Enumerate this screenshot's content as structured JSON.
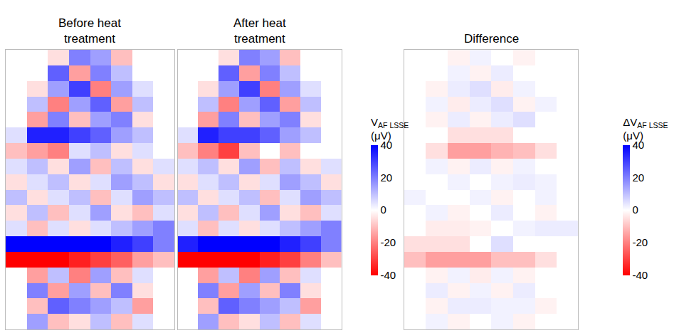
{
  "chart_data": [
    {
      "type": "heatmap",
      "title": "Before heat treatment",
      "tick_labels": false,
      "zlim": [
        -40,
        40
      ],
      "z": [
        [
          0,
          0,
          -5,
          20,
          15,
          -10,
          0,
          0
        ],
        [
          0,
          0,
          25,
          -15,
          20,
          10,
          0,
          0
        ],
        [
          0,
          -5,
          15,
          30,
          -20,
          15,
          5,
          0
        ],
        [
          0,
          10,
          -20,
          15,
          25,
          -15,
          10,
          0
        ],
        [
          0,
          -15,
          20,
          -10,
          15,
          20,
          -5,
          0
        ],
        [
          5,
          35,
          35,
          30,
          25,
          15,
          10,
          0
        ],
        [
          -10,
          -15,
          -20,
          5,
          10,
          -5,
          5,
          0
        ],
        [
          5,
          10,
          -5,
          15,
          -10,
          10,
          -5,
          5
        ],
        [
          -5,
          5,
          10,
          -5,
          5,
          15,
          10,
          -5
        ],
        [
          10,
          -5,
          5,
          10,
          -10,
          5,
          15,
          10
        ],
        [
          -5,
          10,
          -10,
          5,
          15,
          -5,
          -10,
          5
        ],
        [
          5,
          -10,
          5,
          -5,
          5,
          10,
          15,
          20
        ],
        [
          40,
          40,
          40,
          40,
          40,
          35,
          30,
          20
        ],
        [
          -40,
          -40,
          -40,
          -35,
          -30,
          -25,
          -15,
          -10
        ],
        [
          0,
          -15,
          10,
          -20,
          15,
          -10,
          5,
          0
        ],
        [
          0,
          20,
          -15,
          15,
          -10,
          20,
          -5,
          0
        ],
        [
          0,
          -10,
          25,
          20,
          15,
          10,
          -15,
          0
        ],
        [
          0,
          15,
          -10,
          -5,
          10,
          -10,
          5,
          0
        ]
      ]
    },
    {
      "type": "heatmap",
      "title": "After heat treatment",
      "tick_labels": false,
      "zlim": [
        -40,
        40
      ],
      "colorbar": {
        "symbol": "V",
        "subscript": "AF LSSE",
        "unit": "(μV)",
        "range": [
          -40,
          40
        ],
        "ticks": [
          -40,
          -20,
          0,
          20,
          40
        ]
      },
      "z": [
        [
          0,
          0,
          -5,
          20,
          15,
          -10,
          0,
          0
        ],
        [
          0,
          0,
          25,
          -15,
          20,
          10,
          0,
          0
        ],
        [
          0,
          -5,
          15,
          30,
          -20,
          15,
          5,
          0
        ],
        [
          0,
          10,
          -20,
          15,
          25,
          -15,
          10,
          0
        ],
        [
          0,
          -15,
          20,
          -10,
          15,
          20,
          -5,
          0
        ],
        [
          5,
          35,
          30,
          30,
          25,
          15,
          10,
          0
        ],
        [
          -10,
          -20,
          -30,
          -10,
          0,
          -10,
          0,
          0
        ],
        [
          5,
          10,
          -5,
          15,
          -10,
          10,
          -5,
          5
        ],
        [
          -5,
          5,
          10,
          -5,
          5,
          15,
          10,
          -5
        ],
        [
          10,
          -5,
          5,
          10,
          -10,
          5,
          15,
          10
        ],
        [
          -5,
          10,
          -10,
          5,
          15,
          -5,
          -10,
          5
        ],
        [
          5,
          -10,
          5,
          -5,
          5,
          10,
          15,
          20
        ],
        [
          35,
          40,
          40,
          40,
          40,
          35,
          30,
          20
        ],
        [
          -40,
          -40,
          -40,
          -40,
          -35,
          -30,
          -20,
          -10
        ],
        [
          0,
          -15,
          10,
          -20,
          15,
          -10,
          5,
          0
        ],
        [
          0,
          20,
          -15,
          15,
          -10,
          20,
          -5,
          0
        ],
        [
          0,
          -10,
          25,
          20,
          15,
          10,
          -15,
          0
        ],
        [
          0,
          15,
          -10,
          -5,
          10,
          -10,
          5,
          0
        ]
      ]
    },
    {
      "type": "heatmap",
      "title": "Difference",
      "tick_labels": false,
      "zlim": [
        -40,
        40
      ],
      "colorbar": {
        "symbol": "ΔV",
        "subscript": "AF LSSE",
        "unit": "(μV)",
        "range": [
          -40,
          40
        ],
        "ticks": [
          -40,
          -20,
          0,
          20,
          40
        ]
      },
      "z": [
        [
          0,
          0,
          -2,
          2,
          0,
          -2,
          0,
          0
        ],
        [
          0,
          0,
          2,
          -2,
          3,
          0,
          0,
          0
        ],
        [
          0,
          -2,
          3,
          5,
          -3,
          2,
          0,
          0
        ],
        [
          0,
          2,
          -3,
          3,
          5,
          -2,
          2,
          0
        ],
        [
          0,
          -2,
          3,
          -2,
          3,
          5,
          0,
          0
        ],
        [
          0,
          0,
          -5,
          -5,
          -5,
          0,
          0,
          0
        ],
        [
          0,
          -5,
          -15,
          -15,
          -12,
          -10,
          -5,
          0
        ],
        [
          0,
          2,
          -2,
          3,
          -2,
          2,
          0,
          0
        ],
        [
          0,
          0,
          2,
          0,
          2,
          3,
          2,
          0
        ],
        [
          2,
          0,
          0,
          2,
          -2,
          0,
          2,
          0
        ],
        [
          0,
          2,
          -2,
          0,
          3,
          0,
          -2,
          0
        ],
        [
          0,
          -3,
          -3,
          -2,
          0,
          2,
          3,
          3
        ],
        [
          -5,
          -5,
          -5,
          0,
          5,
          0,
          0,
          0
        ],
        [
          -10,
          -15,
          -15,
          -15,
          -10,
          -10,
          -5,
          0
        ],
        [
          0,
          -2,
          2,
          -3,
          2,
          -2,
          0,
          0
        ],
        [
          0,
          3,
          -2,
          2,
          -2,
          3,
          0,
          0
        ],
        [
          0,
          -2,
          3,
          3,
          2,
          2,
          -2,
          0
        ],
        [
          0,
          2,
          -2,
          0,
          2,
          -2,
          0,
          0
        ]
      ]
    }
  ]
}
